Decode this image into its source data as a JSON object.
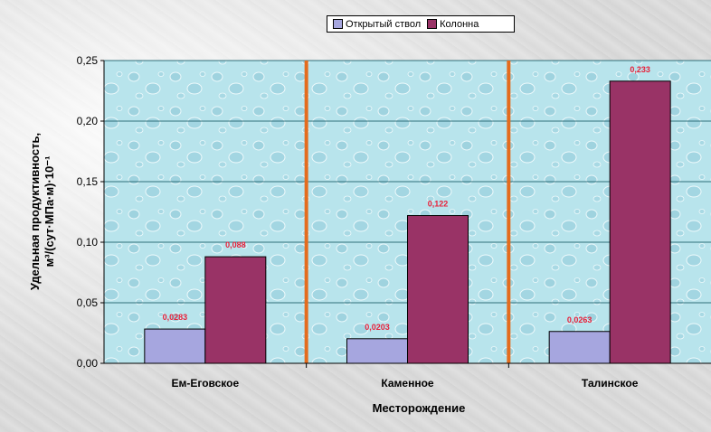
{
  "chart_data": {
    "type": "bar",
    "title": "",
    "xlabel": "Месторождение",
    "ylabel_line1": "Удельная продуктивность,",
    "ylabel_line2": "м³/(сут·МПа·м)·10⁻¹",
    "categories": [
      "Ем-Еговское",
      "Каменное",
      "Талинское"
    ],
    "series": [
      {
        "name": "Открытый ствол",
        "values": [
          0.0283,
          0.0203,
          0.0263
        ],
        "labels": [
          "0,0283",
          "0,0203",
          "0,0263"
        ],
        "color": "#A6A6DF"
      },
      {
        "name": "Колонна",
        "values": [
          0.088,
          0.122,
          0.233
        ],
        "labels": [
          "0,088",
          "0,122",
          "0,233"
        ],
        "color": "#993366"
      }
    ],
    "ylim": [
      0,
      0.25
    ],
    "yticks": [
      "0,00",
      "0,05",
      "0,10",
      "0,15",
      "0,20",
      "0,25"
    ],
    "grid": true,
    "legend_position": "top-center",
    "data_label_color": "#E8203A",
    "separator_color": "#E46C1E",
    "plot_background": "#B8E4EC"
  }
}
